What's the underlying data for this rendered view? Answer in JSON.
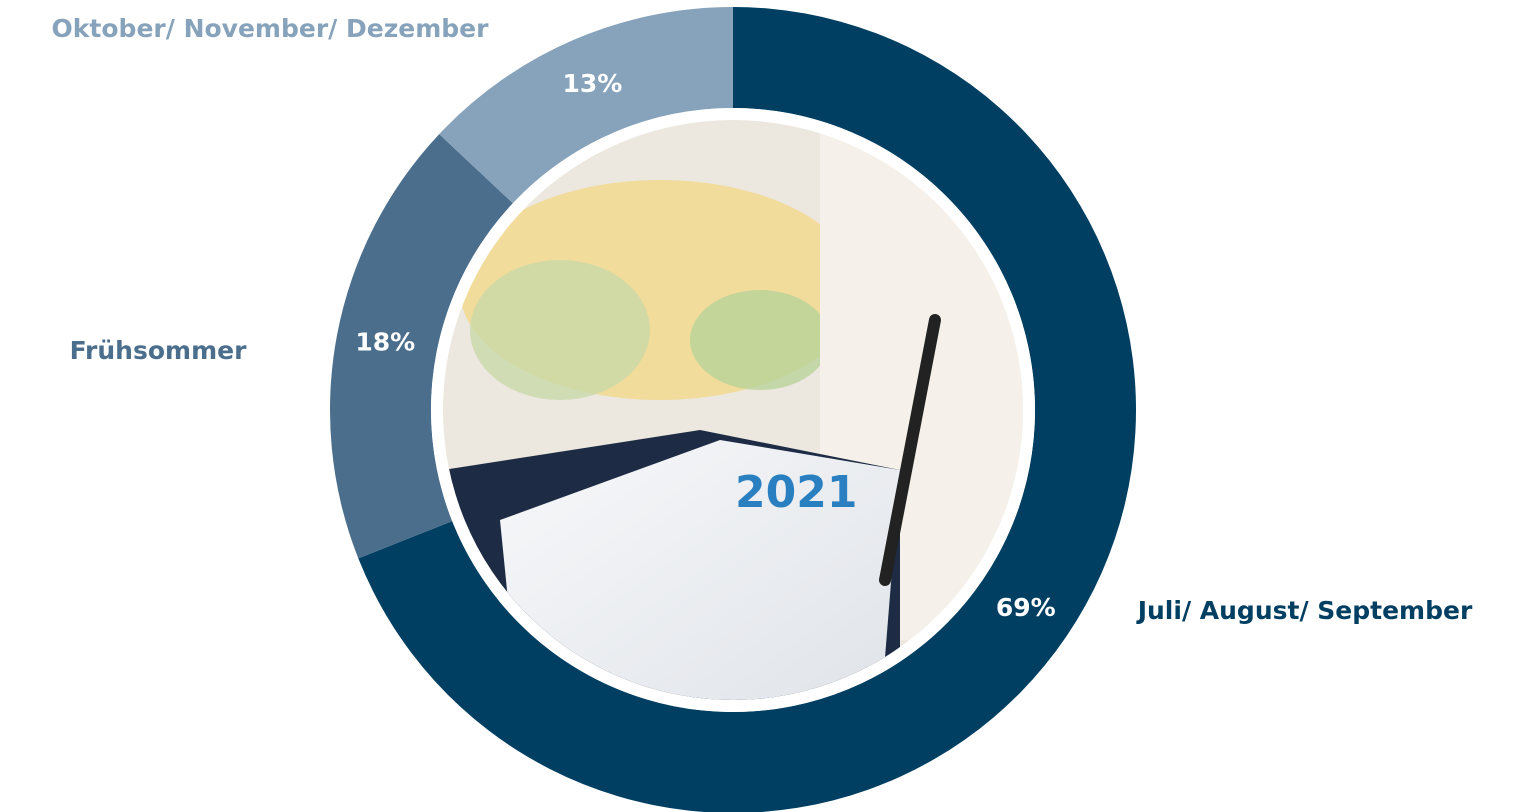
{
  "chart_data": {
    "type": "donut",
    "categories": [
      "Juli/ August/ September",
      "Frühsommer",
      "Oktober/ November/ Dezember"
    ],
    "values": [
      69,
      18,
      13
    ],
    "value_labels": [
      "69%",
      "18%",
      "13%"
    ],
    "colors": [
      "#003f62",
      "#4a6e8c",
      "#87a3bb"
    ]
  }
}
